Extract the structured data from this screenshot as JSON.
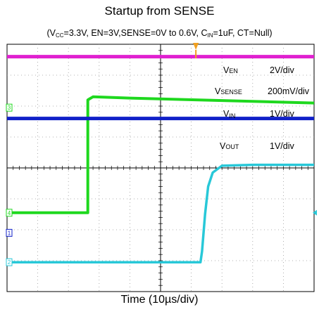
{
  "chart_data": {
    "type": "line",
    "title": "Startup from SENSE",
    "subtitle": {
      "open": "(V",
      "vcc_sub": "CC",
      "mid": "=3.3V, EN=3V,SENSE=0V to 0.6V, C",
      "cin_sub": "IN",
      "close": "=1uF, CT=Null)"
    },
    "xlabel": "Time (10µs/div)",
    "grid": true,
    "divisions": {
      "x": 10,
      "y": 8
    },
    "time_per_div_us": 10,
    "xlim_us": [
      0,
      100
    ],
    "series": [
      {
        "key": "en",
        "name_main": "V",
        "name_sub": "EN",
        "scale": "2V/div",
        "marker": "",
        "color": "#e020d0",
        "points": [
          [
            0,
            7.6
          ],
          [
            100,
            7.6
          ]
        ]
      },
      {
        "key": "sense",
        "name_main": "V",
        "name_sub": "SENSE",
        "scale": "200mV/div",
        "marker": "3",
        "color": "#1ed81e",
        "points": [
          [
            0,
            2.55
          ],
          [
            26.3,
            2.55
          ],
          [
            26.3,
            6.2
          ],
          [
            28,
            6.3
          ],
          [
            40,
            6.26
          ],
          [
            100,
            6.1
          ]
        ]
      },
      {
        "key": "vin",
        "name_main": "V",
        "name_sub": "IN",
        "scale": "1V/div",
        "marker": "",
        "color": "#1020c8",
        "points": [
          [
            0,
            5.6
          ],
          [
            100,
            5.6
          ]
        ]
      },
      {
        "key": "vout",
        "name_main": "V",
        "name_sub": "OUT",
        "scale": "1V/div",
        "marker": "2",
        "color": "#28c8d8",
        "points": [
          [
            0,
            0.95
          ],
          [
            63,
            0.95
          ],
          [
            63.5,
            1.3
          ],
          [
            64.5,
            2.5
          ],
          [
            65.5,
            3.4
          ],
          [
            67,
            3.85
          ],
          [
            70,
            4.07
          ],
          [
            80,
            4.1
          ],
          [
            100,
            4.1
          ]
        ]
      }
    ],
    "level_markers": [
      {
        "label": "4",
        "color": "#1ed81e",
        "level": 2.55
      },
      {
        "label": "1",
        "color": "#1020c8",
        "level": 1.9
      }
    ],
    "trigger_color": "#f0a020"
  }
}
